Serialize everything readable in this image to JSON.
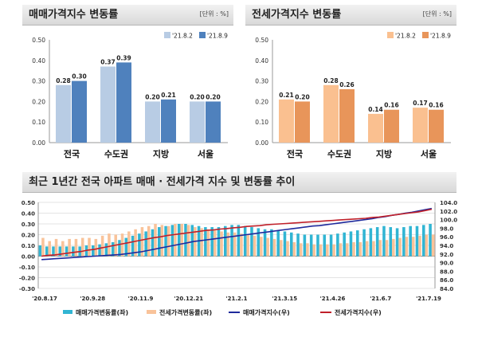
{
  "panel_left": {
    "title": "매매가격지수 변동률",
    "unit": "[단위 : %]"
  },
  "panel_right": {
    "title": "전세가격지수 변동률",
    "unit": "[단위 : %]"
  },
  "panel_bottom": {
    "title": "최근 1년간 전국 아파트 매매 · 전세가격 지수 및 변동률 추이"
  },
  "chart_data": [
    {
      "type": "bar",
      "title": "매매가격지수 변동률",
      "categories": [
        "전국",
        "수도권",
        "지방",
        "서울"
      ],
      "series": [
        {
          "name": "'21.8.2",
          "values": [
            0.28,
            0.37,
            0.2,
            0.2
          ],
          "color": "#b8cce4"
        },
        {
          "name": "'21.8.9",
          "values": [
            0.3,
            0.39,
            0.21,
            0.2
          ],
          "color": "#4f81bd"
        }
      ],
      "ylim": [
        0,
        0.5
      ],
      "yticks": [
        "0.00",
        "0.10",
        "0.20",
        "0.30",
        "0.40",
        "0.50"
      ],
      "labels": [
        [
          "0.28",
          "0.37",
          "0.20",
          "0.20"
        ],
        [
          "0.30",
          "0.39",
          "0.21",
          "0.20"
        ]
      ],
      "legend": "top-right"
    },
    {
      "type": "bar",
      "title": "전세가격지수 변동률",
      "categories": [
        "전국",
        "수도권",
        "지방",
        "서울"
      ],
      "series": [
        {
          "name": "'21.8.2",
          "values": [
            0.21,
            0.28,
            0.14,
            0.17
          ],
          "color": "#fac090"
        },
        {
          "name": "'21.8.9",
          "values": [
            0.2,
            0.26,
            0.16,
            0.16
          ],
          "color": "#e8955a"
        }
      ],
      "ylim": [
        0,
        0.5
      ],
      "yticks": [
        "0.00",
        "0.10",
        "0.20",
        "0.30",
        "0.40",
        "0.50"
      ],
      "labels": [
        [
          "0.21",
          "0.28",
          "0.14",
          "0.17"
        ],
        [
          "0.20",
          "0.26",
          "0.16",
          "0.16"
        ]
      ],
      "legend": "top-right"
    },
    {
      "type": "bar",
      "title": "최근 1년간 전국 아파트 매매 · 전세가격 지수 및 변동률 추이",
      "x_ticks": [
        "'20.8.17",
        "'20.9.28",
        "'20.11.9",
        "'20.12.21",
        "'21.2.1",
        "'21.3.15",
        "'21.4.26",
        "'21.6.7",
        "'21.7.19"
      ],
      "ylim_left": [
        -0.3,
        0.5
      ],
      "yticks_left": [
        "0.50",
        "0.40",
        "0.30",
        "0.20",
        "0.10",
        "0.00",
        "-0.10",
        "-0.20",
        "-0.30"
      ],
      "ylim_right": [
        84,
        104
      ],
      "yticks_right": [
        "104.0",
        "102.0",
        "100.0",
        "98.0",
        "96.0",
        "94.0",
        "92.0",
        "90.0",
        "88.0",
        "86.0",
        "84.0"
      ],
      "grid": true,
      "legend": "bottom",
      "series": [
        {
          "name": "매매가격변동률(좌)",
          "axis": "left",
          "kind": "bar",
          "color": "#31b5d3",
          "values": [
            0.1,
            0.09,
            0.09,
            0.09,
            0.09,
            0.09,
            0.09,
            0.1,
            0.1,
            0.11,
            0.12,
            0.13,
            0.15,
            0.17,
            0.19,
            0.21,
            0.23,
            0.25,
            0.27,
            0.28,
            0.29,
            0.3,
            0.3,
            0.29,
            0.28,
            0.27,
            0.27,
            0.27,
            0.28,
            0.29,
            0.29,
            0.28,
            0.27,
            0.26,
            0.25,
            0.25,
            0.24,
            0.23,
            0.22,
            0.21,
            0.2,
            0.2,
            0.2,
            0.2,
            0.2,
            0.21,
            0.22,
            0.23,
            0.24,
            0.25,
            0.26,
            0.27,
            0.28,
            0.27,
            0.26,
            0.27,
            0.28,
            0.28,
            0.29,
            0.3
          ]
        },
        {
          "name": "전세가격변동률(좌)",
          "axis": "left",
          "kind": "bar",
          "color": "#f9c39a",
          "values": [
            0.17,
            0.14,
            0.16,
            0.14,
            0.16,
            0.16,
            0.17,
            0.17,
            0.16,
            0.19,
            0.21,
            0.2,
            0.21,
            0.23,
            0.25,
            0.27,
            0.28,
            0.3,
            0.29,
            0.28,
            0.3,
            0.3,
            0.29,
            0.27,
            0.26,
            0.25,
            0.24,
            0.23,
            0.22,
            0.22,
            0.21,
            0.2,
            0.19,
            0.18,
            0.17,
            0.16,
            0.15,
            0.14,
            0.13,
            0.12,
            0.12,
            0.11,
            0.11,
            0.11,
            0.11,
            0.12,
            0.12,
            0.13,
            0.13,
            0.14,
            0.14,
            0.15,
            0.15,
            0.16,
            0.17,
            0.18,
            0.18,
            0.19,
            0.2,
            0.2
          ]
        },
        {
          "name": "매매가격지수(우)",
          "axis": "right",
          "kind": "line",
          "color": "#1f2a9c",
          "values": [
            90.7,
            90.8,
            90.9,
            91.0,
            91.1,
            91.2,
            91.3,
            91.4,
            91.5,
            91.6,
            91.7,
            91.8,
            91.9,
            92.1,
            92.3,
            92.5,
            92.8,
            93.1,
            93.4,
            93.7,
            94.0,
            94.3,
            94.6,
            94.9,
            95.1,
            95.3,
            95.5,
            95.7,
            95.9,
            96.1,
            96.3,
            96.5,
            96.7,
            96.9,
            97.1,
            97.3,
            97.5,
            97.7,
            97.9,
            98.1,
            98.3,
            98.5,
            98.6,
            98.8,
            99.0,
            99.2,
            99.4,
            99.6,
            99.8,
            100.0,
            100.2,
            100.5,
            100.7,
            101.0,
            101.2,
            101.5,
            101.7,
            102.0,
            102.3,
            102.6
          ]
        },
        {
          "name": "전세가격지수(우)",
          "axis": "right",
          "kind": "line",
          "color": "#c0202a",
          "values": [
            91.5,
            91.7,
            91.8,
            92.0,
            92.2,
            92.4,
            92.6,
            92.9,
            93.1,
            93.4,
            93.7,
            94.0,
            94.3,
            94.6,
            94.9,
            95.2,
            95.5,
            95.8,
            96.0,
            96.3,
            96.5,
            96.7,
            96.9,
            97.1,
            97.3,
            97.5,
            97.6,
            97.8,
            97.9,
            98.1,
            98.2,
            98.4,
            98.5,
            98.6,
            98.8,
            98.9,
            99.0,
            99.1,
            99.2,
            99.3,
            99.4,
            99.5,
            99.6,
            99.7,
            99.8,
            99.9,
            100.0,
            100.1,
            100.2,
            100.3,
            100.5,
            100.6,
            100.8,
            101.0,
            101.2,
            101.4,
            101.6,
            101.8,
            102.1,
            102.4
          ]
        }
      ]
    }
  ]
}
